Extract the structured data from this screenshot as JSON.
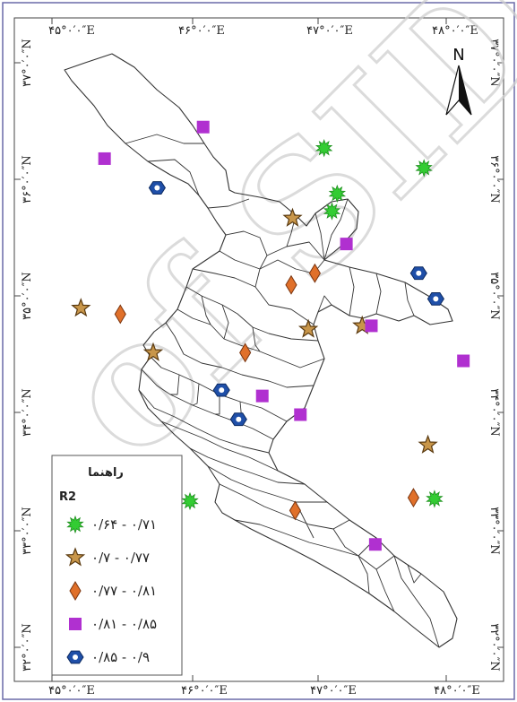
{
  "graticule": {
    "top": [
      "۴۵°٠′٠″E",
      "۴۶°٠′٠″E",
      "۴۷°٠′٠″E",
      "۴۸°٠′٠″E"
    ],
    "bottom": [
      "۴۵°٠′٠″E",
      "۴۶°٠′٠″E",
      "۴۷°٠′٠″E",
      "۴۸°٠′٠″E"
    ],
    "left": [
      "۳۷°٠′٠″N",
      "۳۶°٠′٠″N",
      "۳۵°٠′٠″N",
      "۳۴°٠′٠″N",
      "۳۳°٠′٠″N",
      "۳۲°٠′٠″N"
    ],
    "right": [
      "۳۷°٠′٠″N",
      "۳۶°٠′٠″N",
      "۳۵°٠′٠″N",
      "۳۴°٠′٠″N",
      "۳۳°٠′٠″N",
      "۳۲°٠′٠″N"
    ]
  },
  "north_arrow": {
    "label": "N"
  },
  "watermark": "of SID",
  "legend": {
    "title": "راهنما",
    "subtitle": "R2",
    "classes": [
      {
        "symbol": "green-burst",
        "color": "#33cc33",
        "label": "٠/۶۴ - ٠/۷۱"
      },
      {
        "symbol": "orange-star",
        "color": "#c8964a",
        "label": "٠/۷ - ٠/۷۷"
      },
      {
        "symbol": "orange-diamond",
        "color": "#e0702a",
        "label": "٠/۷۷ - ٠/۸۱"
      },
      {
        "symbol": "purple-square",
        "color": "#b030d0",
        "label": "٠/۸۱ - ٠/۸۵"
      },
      {
        "symbol": "blue-hexagon",
        "color": "#1f4fa8",
        "label": "٠/۸۵ - ٠/۹"
      }
    ]
  },
  "stations": [
    {
      "class": 0,
      "lon": 47.07,
      "lat": 36.27
    },
    {
      "class": 0,
      "lon": 47.83,
      "lat": 36.1
    },
    {
      "class": 0,
      "lon": 47.17,
      "lat": 35.88
    },
    {
      "class": 0,
      "lon": 47.13,
      "lat": 35.73
    },
    {
      "class": 0,
      "lon": 47.91,
      "lat": 33.27
    },
    {
      "class": 0,
      "lon": 46.05,
      "lat": 33.25
    },
    {
      "class": 1,
      "lon": 46.83,
      "lat": 35.67
    },
    {
      "class": 1,
      "lon": 45.22,
      "lat": 34.9
    },
    {
      "class": 1,
      "lon": 45.77,
      "lat": 34.52
    },
    {
      "class": 1,
      "lon": 46.95,
      "lat": 34.72
    },
    {
      "class": 1,
      "lon": 47.36,
      "lat": 34.75
    },
    {
      "class": 1,
      "lon": 47.86,
      "lat": 33.73
    },
    {
      "class": 2,
      "lon": 46.82,
      "lat": 35.1
    },
    {
      "class": 2,
      "lon": 47.0,
      "lat": 35.2
    },
    {
      "class": 2,
      "lon": 45.52,
      "lat": 34.85
    },
    {
      "class": 2,
      "lon": 46.47,
      "lat": 34.52
    },
    {
      "class": 2,
      "lon": 47.75,
      "lat": 33.28
    },
    {
      "class": 2,
      "lon": 46.85,
      "lat": 33.17
    },
    {
      "class": 3,
      "lon": 46.15,
      "lat": 36.45
    },
    {
      "class": 3,
      "lon": 45.4,
      "lat": 36.18
    },
    {
      "class": 3,
      "lon": 47.24,
      "lat": 35.45
    },
    {
      "class": 3,
      "lon": 47.43,
      "lat": 34.75
    },
    {
      "class": 3,
      "lon": 48.13,
      "lat": 34.45
    },
    {
      "class": 3,
      "lon": 46.6,
      "lat": 34.15
    },
    {
      "class": 3,
      "lon": 46.89,
      "lat": 33.99
    },
    {
      "class": 3,
      "lon": 47.46,
      "lat": 32.88
    },
    {
      "class": 4,
      "lon": 45.8,
      "lat": 35.93
    },
    {
      "class": 4,
      "lon": 47.79,
      "lat": 35.2
    },
    {
      "class": 4,
      "lon": 47.92,
      "lat": 34.98
    },
    {
      "class": 4,
      "lon": 46.29,
      "lat": 34.2
    },
    {
      "class": 4,
      "lon": 46.42,
      "lat": 33.95
    }
  ]
}
